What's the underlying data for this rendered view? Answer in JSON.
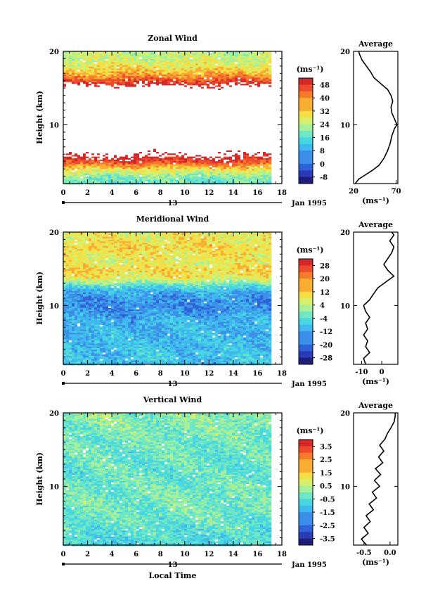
{
  "chart_data": [
    {
      "type": "heatmap",
      "title": "Zonal Wind",
      "ylabel": "Height (km)",
      "ylim": [
        2,
        20
      ],
      "xlim": [
        0,
        18
      ],
      "x_ticks": [
        "0",
        "2",
        "4",
        "6",
        "8",
        "10",
        "12",
        "14",
        "16",
        "18"
      ],
      "y_ticks": [
        "10",
        "20"
      ],
      "date_marker": "13",
      "date_label": "Jan 1995",
      "colorbar": {
        "unit": "(ms⁻¹)",
        "ticks": [
          "48",
          "40",
          "32",
          "24",
          "16",
          "8",
          "0",
          "-8"
        ],
        "range": [
          -12,
          52
        ]
      },
      "field_profile": [
        {
          "h": 2,
          "v": 16
        },
        {
          "h": 3,
          "v": 20
        },
        {
          "h": 4,
          "v": 30
        },
        {
          "h": 5,
          "v": 45
        },
        {
          "h": 6,
          "v": 54
        },
        {
          "h": 7,
          "v": 60
        },
        {
          "h": 8,
          "v": 62
        },
        {
          "h": 9,
          "v": 64
        },
        {
          "h": 10,
          "v": 68
        },
        {
          "h": 11,
          "v": 66
        },
        {
          "h": 12,
          "v": 62
        },
        {
          "h": 13,
          "v": 64
        },
        {
          "h": 14,
          "v": 62
        },
        {
          "h": 15,
          "v": 58
        },
        {
          "h": 16,
          "v": 46
        },
        {
          "h": 17,
          "v": 36
        },
        {
          "h": 18,
          "v": 30
        },
        {
          "h": 19,
          "v": 26
        },
        {
          "h": 20,
          "v": 24
        }
      ],
      "profile": {
        "title": "Average",
        "xlabel": "(ms⁻¹)",
        "x_ticks": [
          "20",
          "70"
        ],
        "xlim": [
          20,
          72
        ],
        "y_ticks": [
          "10",
          "20"
        ],
        "points": [
          {
            "h": 2,
            "v": 22
          },
          {
            "h": 2.6,
            "v": 26
          },
          {
            "h": 3.2,
            "v": 34
          },
          {
            "h": 3.8,
            "v": 42
          },
          {
            "h": 4.5,
            "v": 50
          },
          {
            "h": 5.5,
            "v": 56
          },
          {
            "h": 6.5,
            "v": 60
          },
          {
            "h": 7.5,
            "v": 63
          },
          {
            "h": 8.5,
            "v": 65
          },
          {
            "h": 9.5,
            "v": 68
          },
          {
            "h": 10,
            "v": 71
          },
          {
            "h": 10.8,
            "v": 68
          },
          {
            "h": 11.6,
            "v": 65
          },
          {
            "h": 12.4,
            "v": 64
          },
          {
            "h": 13.2,
            "v": 66
          },
          {
            "h": 14,
            "v": 64
          },
          {
            "h": 14.8,
            "v": 60
          },
          {
            "h": 15.6,
            "v": 52
          },
          {
            "h": 16.4,
            "v": 44
          },
          {
            "h": 17.2,
            "v": 40
          },
          {
            "h": 18,
            "v": 35
          },
          {
            "h": 18.8,
            "v": 30
          },
          {
            "h": 19.6,
            "v": 27
          },
          {
            "h": 20,
            "v": 26
          }
        ]
      }
    },
    {
      "type": "heatmap",
      "title": "Meridional Wind",
      "ylabel": "Height (km)",
      "ylim": [
        2,
        20
      ],
      "xlim": [
        0,
        18
      ],
      "x_ticks": [
        "0",
        "2",
        "4",
        "6",
        "8",
        "10",
        "12",
        "14",
        "16",
        "18"
      ],
      "y_ticks": [
        "10",
        "20"
      ],
      "date_marker": "13",
      "date_label": "Jan 1995",
      "colorbar": {
        "unit": "(ms⁻¹)",
        "ticks": [
          "28",
          "20",
          "12",
          "4",
          "-4",
          "-12",
          "-20",
          "-28"
        ],
        "range": [
          -32,
          32
        ]
      },
      "field_profile": [
        {
          "h": 2,
          "v": -10
        },
        {
          "h": 4,
          "v": -10
        },
        {
          "h": 6,
          "v": -11
        },
        {
          "h": 8,
          "v": -12
        },
        {
          "h": 10,
          "v": -16
        },
        {
          "h": 11,
          "v": -15
        },
        {
          "h": 12,
          "v": -12
        },
        {
          "h": 12.7,
          "v": -6
        },
        {
          "h": 13.4,
          "v": 4
        },
        {
          "h": 14,
          "v": 10
        },
        {
          "h": 15,
          "v": 12
        },
        {
          "h": 16,
          "v": 8
        },
        {
          "h": 17,
          "v": 10
        },
        {
          "h": 18,
          "v": 12
        },
        {
          "h": 19,
          "v": 10
        },
        {
          "h": 20,
          "v": 8
        }
      ],
      "profile": {
        "title": "Average",
        "xlabel": "(ms⁻¹)",
        "x_ticks": [
          "-10",
          "0"
        ],
        "xlim": [
          -14,
          8
        ],
        "y_ticks": [
          "10",
          "20"
        ],
        "points": [
          {
            "h": 2,
            "v": -8
          },
          {
            "h": 2.8,
            "v": -9
          },
          {
            "h": 3.6,
            "v": -6
          },
          {
            "h": 4.4,
            "v": -8
          },
          {
            "h": 5.2,
            "v": -7
          },
          {
            "h": 6.0,
            "v": -9
          },
          {
            "h": 6.8,
            "v": -7
          },
          {
            "h": 7.6,
            "v": -8
          },
          {
            "h": 8.4,
            "v": -6
          },
          {
            "h": 9.2,
            "v": -8
          },
          {
            "h": 10,
            "v": -9
          },
          {
            "h": 10.8,
            "v": -6
          },
          {
            "h": 11.6,
            "v": -4
          },
          {
            "h": 12.4,
            "v": -2
          },
          {
            "h": 13.2,
            "v": 2
          },
          {
            "h": 14,
            "v": 6
          },
          {
            "h": 14.8,
            "v": 3
          },
          {
            "h": 15.6,
            "v": 1
          },
          {
            "h": 16.4,
            "v": 3
          },
          {
            "h": 17.2,
            "v": 5
          },
          {
            "h": 18,
            "v": 6
          },
          {
            "h": 18.8,
            "v": 4
          },
          {
            "h": 19.6,
            "v": 6
          },
          {
            "h": 20,
            "v": 5
          }
        ]
      }
    },
    {
      "type": "heatmap",
      "title": "Vertical Wind",
      "xlabel": "Local Time",
      "ylabel": "Height (km)",
      "ylim": [
        2,
        20
      ],
      "xlim": [
        0,
        18
      ],
      "x_ticks": [
        "0",
        "2",
        "4",
        "6",
        "8",
        "10",
        "12",
        "14",
        "16",
        "18"
      ],
      "y_ticks": [
        "10",
        "20"
      ],
      "date_marker": "13",
      "date_label": "Jan 1995",
      "colorbar": {
        "unit": "(ms⁻¹)",
        "ticks": [
          "3.5",
          "2.5",
          "1.5",
          "0.5",
          "-0.5",
          "-1.5",
          "-2.5",
          "-3.5"
        ],
        "range": [
          -4,
          4
        ]
      },
      "field_profile": [
        {
          "h": 2,
          "v": -0.9
        },
        {
          "h": 4,
          "v": -0.6
        },
        {
          "h": 6,
          "v": -0.3
        },
        {
          "h": 8,
          "v": -0.2
        },
        {
          "h": 10,
          "v": -0.3
        },
        {
          "h": 12,
          "v": -0.4
        },
        {
          "h": 14,
          "v": -0.4
        },
        {
          "h": 16,
          "v": -0.3
        },
        {
          "h": 18,
          "v": -0.1
        },
        {
          "h": 20,
          "v": 0.1
        }
      ],
      "profile": {
        "title": "Average",
        "xlabel": "(ms⁻¹)",
        "x_ticks": [
          "-0.5",
          "0.0"
        ],
        "xlim": [
          -0.7,
          0.15
        ],
        "y_ticks": [
          "10",
          "20"
        ],
        "points": [
          {
            "h": 2,
            "v": -0.45
          },
          {
            "h": 2.8,
            "v": -0.55
          },
          {
            "h": 3.6,
            "v": -0.42
          },
          {
            "h": 4.4,
            "v": -0.5
          },
          {
            "h": 5.2,
            "v": -0.38
          },
          {
            "h": 6.0,
            "v": -0.46
          },
          {
            "h": 6.8,
            "v": -0.32
          },
          {
            "h": 7.6,
            "v": -0.4
          },
          {
            "h": 8.4,
            "v": -0.26
          },
          {
            "h": 9.2,
            "v": -0.34
          },
          {
            "h": 10,
            "v": -0.2
          },
          {
            "h": 10.8,
            "v": -0.3
          },
          {
            "h": 11.6,
            "v": -0.18
          },
          {
            "h": 12.4,
            "v": -0.28
          },
          {
            "h": 13.2,
            "v": -0.14
          },
          {
            "h": 14,
            "v": -0.22
          },
          {
            "h": 14.8,
            "v": -0.12
          },
          {
            "h": 15.6,
            "v": -0.2
          },
          {
            "h": 16.4,
            "v": -0.1
          },
          {
            "h": 17.2,
            "v": -0.05
          },
          {
            "h": 18,
            "v": 0.02
          },
          {
            "h": 18.8,
            "v": 0.08
          },
          {
            "h": 19.6,
            "v": 0.1
          },
          {
            "h": 20,
            "v": 0.1
          }
        ]
      }
    }
  ]
}
